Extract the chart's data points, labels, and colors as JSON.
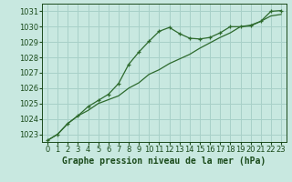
{
  "line1_x": [
    0,
    1,
    2,
    3,
    4,
    5,
    6,
    7,
    8,
    9,
    10,
    11,
    12,
    13,
    14,
    15,
    16,
    17,
    18,
    19,
    20,
    21,
    22,
    23
  ],
  "line1_y": [
    1022.6,
    1023.0,
    1023.7,
    1024.2,
    1024.8,
    1025.2,
    1025.6,
    1026.3,
    1027.55,
    1028.35,
    1029.05,
    1029.7,
    1029.95,
    1029.55,
    1029.25,
    1029.2,
    1029.3,
    1029.6,
    1030.0,
    1030.0,
    1030.05,
    1030.35,
    1031.0,
    1031.05
  ],
  "line2_x": [
    0,
    1,
    2,
    3,
    4,
    5,
    6,
    7,
    8,
    9,
    10,
    11,
    12,
    13,
    14,
    15,
    16,
    17,
    18,
    19,
    20,
    21,
    22,
    23
  ],
  "line2_y": [
    1022.6,
    1023.0,
    1023.7,
    1024.2,
    1024.55,
    1025.0,
    1025.25,
    1025.5,
    1026.0,
    1026.35,
    1026.9,
    1027.2,
    1027.6,
    1027.9,
    1028.2,
    1028.6,
    1028.95,
    1029.3,
    1029.6,
    1030.0,
    1030.1,
    1030.35,
    1030.7,
    1030.8
  ],
  "line_color": "#2d6a2d",
  "marker_color": "#2d6a2d",
  "bg_color": "#c8e8e0",
  "grid_color": "#a8d0c8",
  "xlabel": "Graphe pression niveau de la mer (hPa)",
  "ylim": [
    1022.5,
    1031.5
  ],
  "xlim": [
    -0.5,
    23.5
  ],
  "yticks": [
    1023,
    1024,
    1025,
    1026,
    1027,
    1028,
    1029,
    1030,
    1031
  ],
  "xticks": [
    0,
    1,
    2,
    3,
    4,
    5,
    6,
    7,
    8,
    9,
    10,
    11,
    12,
    13,
    14,
    15,
    16,
    17,
    18,
    19,
    20,
    21,
    22,
    23
  ],
  "xlabel_fontsize": 7.0,
  "tick_fontsize": 6.0,
  "label_color": "#1a4a1a"
}
